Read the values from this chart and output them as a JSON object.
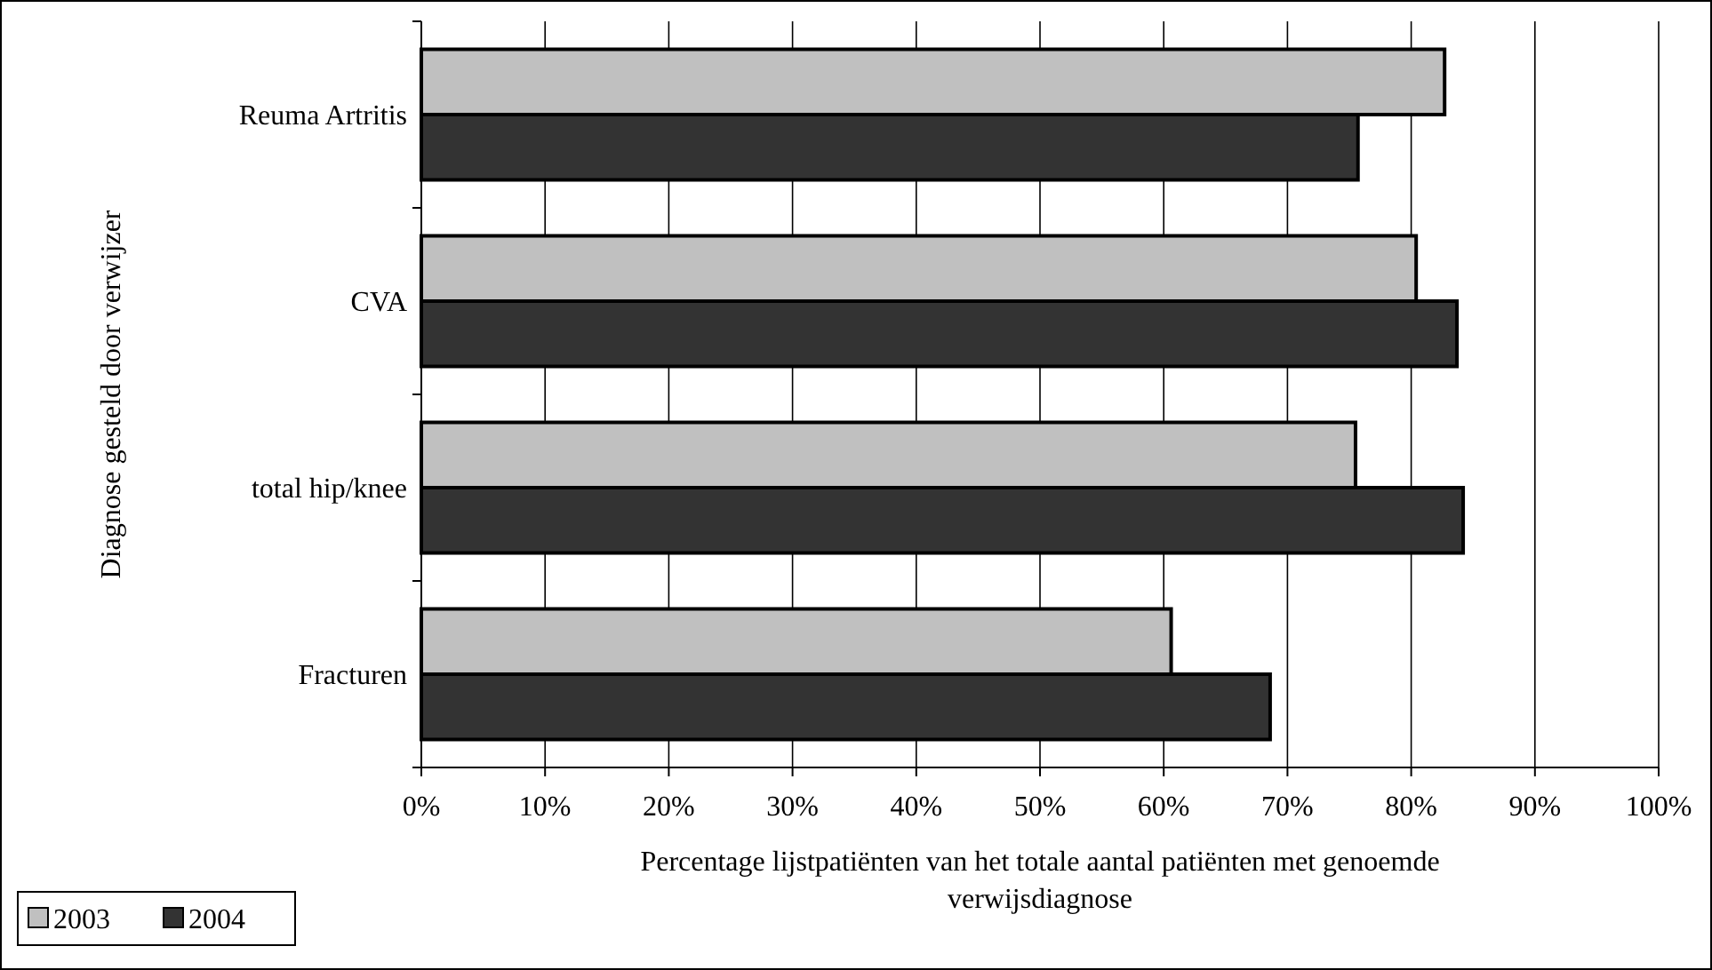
{
  "chart_data": {
    "type": "bar",
    "orientation": "horizontal",
    "xlabel": "Percentage lijstpatiënten van het totale aantal patiënten met genoemde verwijsdiagnose",
    "ylabel": "Diagnose gesteld door verwijzer",
    "categories": [
      "Reuma Artritis",
      "CVA",
      "total hip/knee",
      "Fracturen"
    ],
    "series": [
      {
        "name": "2003",
        "color": "#c0c0c0",
        "values": [
          82.7,
          80.4,
          75.5,
          60.6
        ]
      },
      {
        "name": "2004",
        "color": "#333333",
        "values": [
          75.7,
          83.7,
          84.2,
          68.6
        ]
      }
    ],
    "xlim": [
      0,
      100
    ],
    "xticks": [
      {
        "value": 0,
        "label": "0%"
      },
      {
        "value": 10,
        "label": "10%"
      },
      {
        "value": 20,
        "label": "20%"
      },
      {
        "value": 30,
        "label": "30%"
      },
      {
        "value": 40,
        "label": "40%"
      },
      {
        "value": 50,
        "label": "50%"
      },
      {
        "value": 60,
        "label": "60%"
      },
      {
        "value": 70,
        "label": "70%"
      },
      {
        "value": 80,
        "label": "80%"
      },
      {
        "value": 90,
        "label": "90%"
      },
      {
        "value": 100,
        "label": "100%"
      }
    ],
    "grid": "x",
    "legend": "bottom left"
  }
}
